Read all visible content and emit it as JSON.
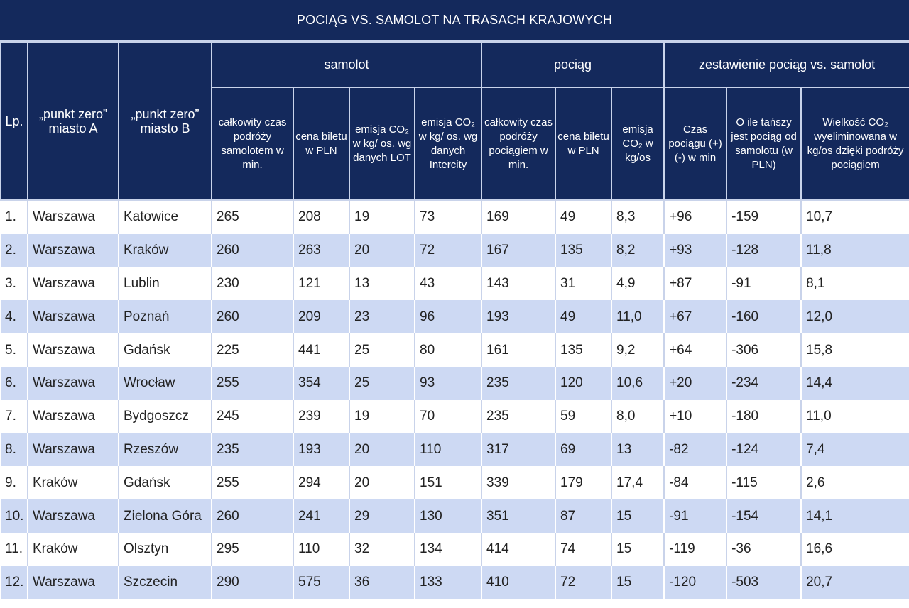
{
  "title": "POCIĄG VS. SAMOLOT NA TRASACH  KRAJOWYCH",
  "colors": {
    "header": "#14295c",
    "row_alt": "#cdd9f3",
    "row": "#ffffff"
  },
  "groups": {
    "samolot": "samolot",
    "pociag": "pociąg",
    "zestawienie": "zestawienie pociąg vs. samolot"
  },
  "headers": {
    "lp": "Lp.",
    "city_a": "„punkt zero” miasto A",
    "city_b": "„punkt zero” miasto B",
    "plane_time": "całkowity czas podróży samolotem w min.",
    "plane_price": "cena biletu w PLN",
    "plane_co2_lot": "emisja CO₂ w kg/ os. wg danych LOT",
    "plane_co2_ic": "emisja CO₂ w kg/ os. wg danych Intercity",
    "train_time": "całkowity czas podróży pociągiem w min.",
    "train_price": "cena biletu w PLN",
    "train_co2": "emisja CO₂ w kg/os",
    "time_diff": "Czas pociągu (+) (-) w min",
    "cheaper": "O ile tańszy jest pociąg od samolotu (w PLN)",
    "co2_saved": "Wielkość CO₂ wyeliminowana w kg/os dzięki podróży pociągiem"
  },
  "chart_data": {
    "type": "table",
    "title": "POCIĄG VS. SAMOLOT NA TRASACH  KRAJOWYCH",
    "rows": [
      [
        "1.",
        "Warszawa",
        "Katowice",
        "265",
        "208",
        "19",
        "73",
        "169",
        "49",
        "8,3",
        "+96",
        "-159",
        "10,7"
      ],
      [
        "2.",
        "Warszawa",
        "Kraków",
        "260",
        "263",
        "20",
        "72",
        "167",
        "135",
        "8,2",
        "+93",
        "-128",
        "11,8"
      ],
      [
        "3.",
        "Warszawa",
        "Lublin",
        "230",
        "121",
        "13",
        "43",
        "143",
        "31",
        "4,9",
        "+87",
        "-91",
        "8,1"
      ],
      [
        "4.",
        "Warszawa",
        "Poznań",
        "260",
        "209",
        "23",
        "96",
        "193",
        "49",
        "11,0",
        "+67",
        "-160",
        "12,0"
      ],
      [
        "5.",
        "Warszawa",
        "Gdańsk",
        "225",
        "441",
        "25",
        "80",
        "161",
        "135",
        "9,2",
        "+64",
        "-306",
        "15,8"
      ],
      [
        "6.",
        "Warszawa",
        "Wrocław",
        "255",
        "354",
        "25",
        "93",
        "235",
        "120",
        "10,6",
        "+20",
        "-234",
        "14,4"
      ],
      [
        "7.",
        "Warszawa",
        "Bydgoszcz",
        "245",
        "239",
        "19",
        "70",
        "235",
        "59",
        "8,0",
        "+10",
        "-180",
        "11,0"
      ],
      [
        "8.",
        "Warszawa",
        "Rzeszów",
        "235",
        "193",
        "20",
        "110",
        "317",
        "69",
        "13",
        "-82",
        "-124",
        "7,4"
      ],
      [
        "9.",
        "Kraków",
        "Gdańsk",
        "255",
        "294",
        "20",
        "151",
        "339",
        "179",
        "17,4",
        "-84",
        "-115",
        "2,6"
      ],
      [
        "10.",
        "Warszawa",
        "Zielona Góra",
        "260",
        "241",
        "29",
        "130",
        "351",
        "87",
        "15",
        "-91",
        "-154",
        "14,1"
      ],
      [
        "11.",
        "Kraków",
        "Olsztyn",
        "295",
        "110",
        "32",
        "134",
        "414",
        "74",
        "15",
        "-119",
        "-36",
        "16,6"
      ],
      [
        "12.",
        "Warszawa",
        "Szczecin",
        "290",
        "575",
        "36",
        "133",
        "410",
        "72",
        "15",
        "-120",
        "-503",
        "20,7"
      ]
    ]
  }
}
